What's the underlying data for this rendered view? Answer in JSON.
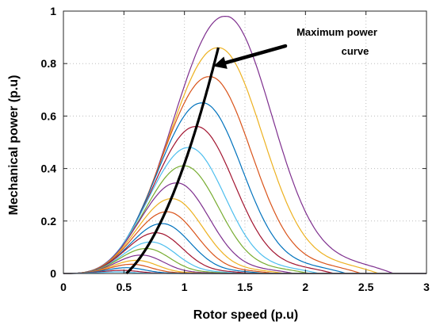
{
  "chart_data": {
    "type": "line",
    "xlabel": "Rotor speed (p.u)",
    "ylabel": "Mechanical power (p.u)",
    "xlim": [
      0,
      3
    ],
    "ylim": [
      0,
      1
    ],
    "xticks": [
      "0",
      "0.5",
      "1",
      "1.5",
      "2",
      "2.5",
      "3"
    ],
    "yticks": [
      "0",
      "0.2",
      "0.4",
      "0.6",
      "0.8",
      "1"
    ],
    "grid": "dotted",
    "annotation": {
      "line1": "Maximum power",
      "line2": "curve",
      "points_to": {
        "x": 1.2,
        "y": 0.79
      }
    },
    "max_power_curve": {
      "x0": 0.52,
      "coefficient": 0.424,
      "x_end": 1.28
    },
    "series": [
      {
        "peak_x": 1.33,
        "peak_y": 0.98,
        "color": "#7E2F8E"
      },
      {
        "peak_x": 1.27,
        "peak_y": 0.86,
        "color": "#EDB120"
      },
      {
        "peak_x": 1.2,
        "peak_y": 0.75,
        "color": "#D95319"
      },
      {
        "peak_x": 1.14,
        "peak_y": 0.65,
        "color": "#0072BD"
      },
      {
        "peak_x": 1.09,
        "peak_y": 0.56,
        "color": "#A2142F"
      },
      {
        "peak_x": 1.03,
        "peak_y": 0.48,
        "color": "#4DBEEE"
      },
      {
        "peak_x": 0.99,
        "peak_y": 0.41,
        "color": "#77AC30"
      },
      {
        "peak_x": 0.93,
        "peak_y": 0.345,
        "color": "#7E2F8E"
      },
      {
        "peak_x": 0.89,
        "peak_y": 0.285,
        "color": "#EDB120"
      },
      {
        "peak_x": 0.85,
        "peak_y": 0.235,
        "color": "#D95319"
      },
      {
        "peak_x": 0.81,
        "peak_y": 0.19,
        "color": "#0072BD"
      },
      {
        "peak_x": 0.76,
        "peak_y": 0.155,
        "color": "#A2142F"
      },
      {
        "peak_x": 0.72,
        "peak_y": 0.12,
        "color": "#4DBEEE"
      },
      {
        "peak_x": 0.68,
        "peak_y": 0.095,
        "color": "#77AC30"
      },
      {
        "peak_x": 0.64,
        "peak_y": 0.07,
        "color": "#7E2F8E"
      },
      {
        "peak_x": 0.6,
        "peak_y": 0.05,
        "color": "#EDB120"
      },
      {
        "peak_x": 0.56,
        "peak_y": 0.035,
        "color": "#D95319"
      },
      {
        "peak_x": 0.52,
        "peak_y": 0.022,
        "color": "#0072BD"
      },
      {
        "peak_x": 0.48,
        "peak_y": 0.012,
        "color": "#A2142F"
      },
      {
        "peak_x": 0.44,
        "peak_y": 0.006,
        "color": "#4DBEEE"
      }
    ]
  }
}
